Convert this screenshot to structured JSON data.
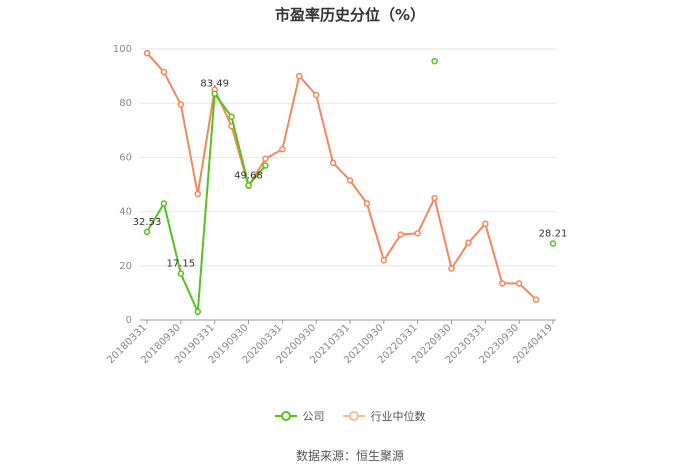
{
  "chart_data": {
    "type": "line",
    "title": "市盈率历史分位（%）",
    "ylim": [
      0,
      100
    ],
    "yticks": [
      0,
      20,
      40,
      60,
      80,
      100
    ],
    "x": [
      "20180331",
      "20180630",
      "20180930",
      "20181231",
      "20190331",
      "20190630",
      "20190930",
      "20191231",
      "20200331",
      "20200630",
      "20200930",
      "20201231",
      "20210331",
      "20210630",
      "20210930",
      "20211231",
      "20220331",
      "20220630",
      "20220930",
      "20221231",
      "20230331",
      "20230630",
      "20230930",
      "20231231",
      "20240419"
    ],
    "xticks": [
      "20180331",
      "20180930",
      "20190331",
      "20190930",
      "20200331",
      "20200930",
      "20210331",
      "20210930",
      "20220331",
      "20220930",
      "20230331",
      "20230930",
      "20240419"
    ],
    "grid": true,
    "legend_position": "bottom",
    "series": [
      {
        "name": "公司",
        "color": "#52c41a",
        "values": [
          32.53,
          43,
          17.15,
          3,
          83.49,
          75,
          49.68,
          57,
          null,
          null,
          null,
          null,
          null,
          null,
          null,
          null,
          null,
          95.5,
          null,
          null,
          null,
          null,
          null,
          null,
          28.21
        ],
        "labels": {
          "0": "32.53",
          "2": "17.15",
          "4": "83.49",
          "6": "49.68",
          "24": "28.21"
        }
      },
      {
        "name": "行业中位数",
        "color": "#f5875a",
        "values": [
          98.5,
          91.5,
          79.5,
          46.5,
          85,
          71.5,
          49.5,
          59.5,
          63,
          90,
          83,
          58,
          51.5,
          43,
          22,
          31.5,
          32,
          45,
          19,
          28.5,
          35.5,
          13.5,
          13.5,
          7.5,
          null
        ]
      }
    ]
  },
  "legend": {
    "company": "公司",
    "industry": "行业中位数"
  },
  "source": "数据来源：恒生聚源"
}
